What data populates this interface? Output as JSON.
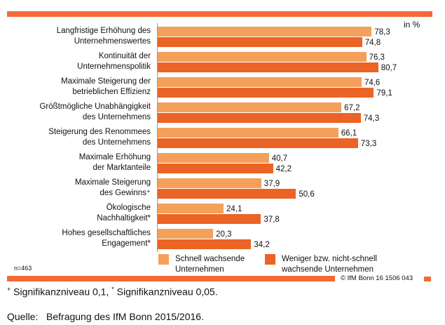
{
  "chart_data": {
    "type": "bar",
    "orientation": "horizontal",
    "unit_label": "in %",
    "categories": [
      "Langfristige Erhöhung des\nUnternehmenswertes",
      "Kontinuität der\nUnternehmenspolitik",
      "Maximale Steigerung der\nbetrieblichen Effizienz",
      "Größtmögliche Unabhängigkeit\ndes Unternehmens",
      "Steigerung des Renommees\ndes Unternehmens",
      "Maximale Erhöhung\nder Marktanteile",
      "Maximale Steigerung\ndes Gewinns⁺",
      "Ökologische\nNachhaltigkeit*",
      "Hohes gesellschaftliches\nEngagement*"
    ],
    "series": [
      {
        "name": "Schnell wachsende\nUnternehmen",
        "color": "#F5A05A",
        "values": [
          78.3,
          76.3,
          74.6,
          67.2,
          66.1,
          40.7,
          37.9,
          24.1,
          20.3
        ],
        "labels": [
          "78,3",
          "76,3",
          "74,6",
          "67,2",
          "66,1",
          "40,7",
          "37,9",
          "24,1",
          "20,3"
        ]
      },
      {
        "name": "Weniger bzw. nicht-schnell\nwachsende Unternehmen",
        "color": "#EB6426",
        "values": [
          74.8,
          80.7,
          79.1,
          74.3,
          73.3,
          42.2,
          50.6,
          37.8,
          34.2
        ],
        "labels": [
          "74,8",
          "80,7",
          "79,1",
          "74,3",
          "73,3",
          "42,2",
          "50,6",
          "37,8",
          "34,2"
        ]
      }
    ],
    "xlim": [
      0,
      100
    ],
    "grid": false,
    "legend": "bottom"
  },
  "sample": "n=463",
  "copyright": "© IfM Bonn 16  1506 043",
  "footnote": {
    "plus": "+",
    "plus_text": " Signifikanzniveau 0,1, ",
    "star": "*",
    "star_text": " Signifikanzniveau 0,05."
  },
  "source": "Quelle:   Befragung des IfM Bonn 2015/2016.",
  "colors": {
    "accent": "#F26A35"
  }
}
